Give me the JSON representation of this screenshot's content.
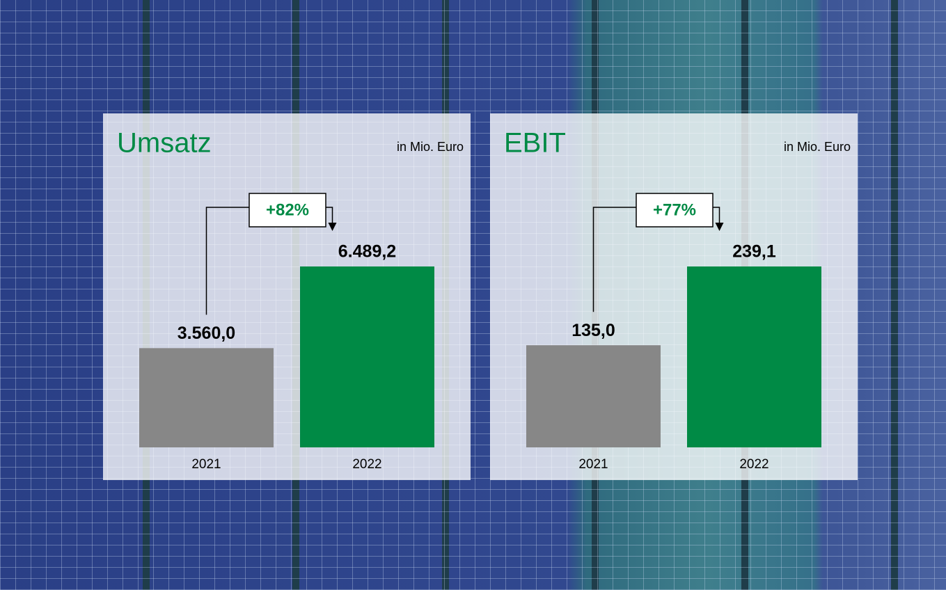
{
  "chart_data": [
    {
      "type": "bar",
      "title": "Umsatz",
      "subtitle": "in Mio. Euro",
      "categories": [
        "2021",
        "2022"
      ],
      "values": [
        3560,
        6489.2
      ],
      "value_labels": [
        "3.560,0",
        "6.489,2"
      ],
      "colors": [
        "#878787",
        "#008a45"
      ],
      "change_label": "+82%",
      "accent_color": "#008a45"
    },
    {
      "type": "bar",
      "title": "EBIT",
      "subtitle": "in Mio. Euro",
      "categories": [
        "2021",
        "2022"
      ],
      "values": [
        135,
        239.1
      ],
      "value_labels": [
        "135,0",
        "239,1"
      ],
      "colors": [
        "#878787",
        "#008a45"
      ],
      "change_label": "+77%",
      "accent_color": "#008a45"
    }
  ]
}
